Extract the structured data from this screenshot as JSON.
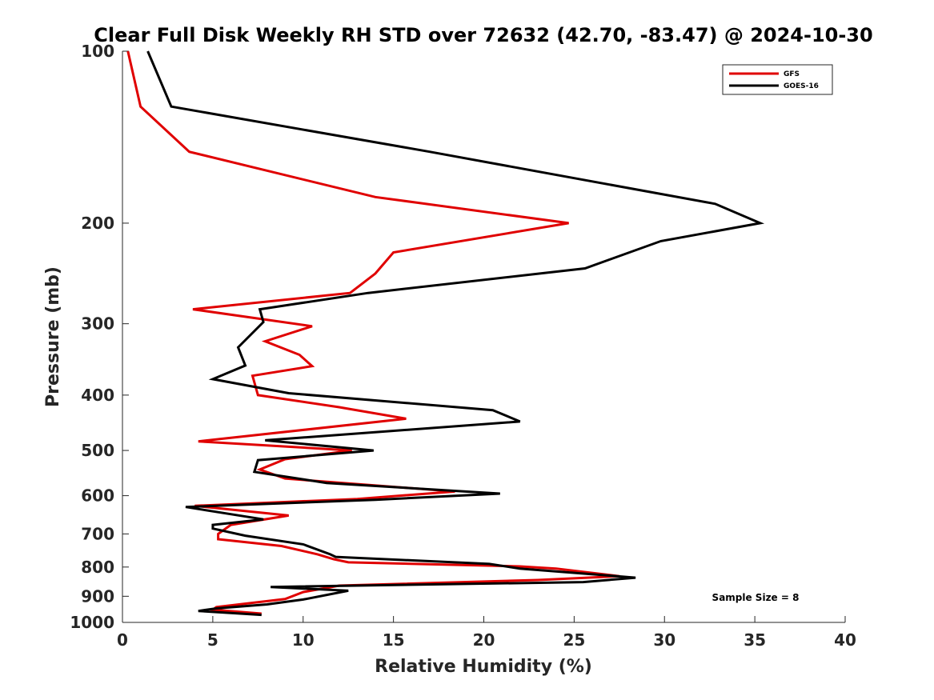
{
  "chart_data": {
    "type": "line",
    "title": "Clear Full Disk Weekly RH STD over 72632 (42.70, -83.47) @ 2024-10-30",
    "xlabel": "Relative Humidity (%)",
    "ylabel": "Pressure (mb)",
    "xlim": [
      0,
      40
    ],
    "ylim": [
      100,
      1000
    ],
    "yscale": "log",
    "y_reversed": true,
    "xticks": [
      0,
      5,
      10,
      15,
      20,
      25,
      30,
      35,
      40
    ],
    "yticks": [
      100,
      200,
      300,
      400,
      500,
      600,
      700,
      800,
      900,
      1000
    ],
    "grid": false,
    "legend_location": "top-right",
    "annotation": "Sample Size = 8",
    "series": [
      {
        "name": "GFS",
        "color": "#e00000",
        "points": [
          [
            0.3,
            100
          ],
          [
            1.0,
            125
          ],
          [
            3.7,
            150
          ],
          [
            14.0,
            180
          ],
          [
            24.7,
            200
          ],
          [
            15.0,
            225
          ],
          [
            14.0,
            245
          ],
          [
            12.6,
            265
          ],
          [
            3.9,
            283
          ],
          [
            10.5,
            303
          ],
          [
            7.9,
            322
          ],
          [
            9.8,
            340
          ],
          [
            10.5,
            356
          ],
          [
            7.2,
            370
          ],
          [
            7.5,
            400
          ],
          [
            12.0,
            420
          ],
          [
            15.7,
            440
          ],
          [
            4.2,
            482
          ],
          [
            12.7,
            500
          ],
          [
            9.0,
            518
          ],
          [
            7.6,
            540
          ],
          [
            9.0,
            560
          ],
          [
            18.4,
            590
          ],
          [
            13.0,
            608
          ],
          [
            4.0,
            625
          ],
          [
            9.2,
            650
          ],
          [
            6.0,
            675
          ],
          [
            5.3,
            700
          ],
          [
            5.3,
            715
          ],
          [
            8.8,
            735
          ],
          [
            10.8,
            760
          ],
          [
            11.7,
            775
          ],
          [
            12.5,
            785
          ],
          [
            22.0,
            798
          ],
          [
            24.0,
            805
          ],
          [
            27.5,
            830
          ],
          [
            23.0,
            843
          ],
          [
            12.0,
            862
          ],
          [
            10.0,
            885
          ],
          [
            9.0,
            910
          ],
          [
            5.2,
            940
          ],
          [
            5.0,
            950
          ],
          [
            7.7,
            965
          ]
        ]
      },
      {
        "name": "GOES-16",
        "color": "#000000",
        "points": [
          [
            1.4,
            100
          ],
          [
            2.7,
            125
          ],
          [
            17.0,
            150
          ],
          [
            32.8,
            185
          ],
          [
            35.3,
            200
          ],
          [
            29.8,
            215
          ],
          [
            25.6,
            240
          ],
          [
            13.6,
            265
          ],
          [
            7.6,
            283
          ],
          [
            7.8,
            298
          ],
          [
            6.4,
            330
          ],
          [
            6.8,
            355
          ],
          [
            5.0,
            375
          ],
          [
            9.2,
            397
          ],
          [
            20.5,
            425
          ],
          [
            22.0,
            445
          ],
          [
            11.0,
            472
          ],
          [
            7.9,
            480
          ],
          [
            13.9,
            500
          ],
          [
            7.5,
            520
          ],
          [
            7.3,
            545
          ],
          [
            11.3,
            570
          ],
          [
            20.9,
            595
          ],
          [
            14.0,
            610
          ],
          [
            3.5,
            628
          ],
          [
            7.8,
            660
          ],
          [
            5.0,
            675
          ],
          [
            5.0,
            685
          ],
          [
            6.8,
            705
          ],
          [
            10.0,
            730
          ],
          [
            11.5,
            760
          ],
          [
            11.8,
            768
          ],
          [
            20.3,
            790
          ],
          [
            22.0,
            805
          ],
          [
            28.4,
            835
          ],
          [
            25.5,
            850
          ],
          [
            8.2,
            867
          ],
          [
            12.5,
            880
          ],
          [
            10.0,
            912
          ],
          [
            8.0,
            930
          ],
          [
            5.2,
            945
          ],
          [
            4.2,
            955
          ],
          [
            7.7,
            970
          ]
        ]
      }
    ]
  }
}
